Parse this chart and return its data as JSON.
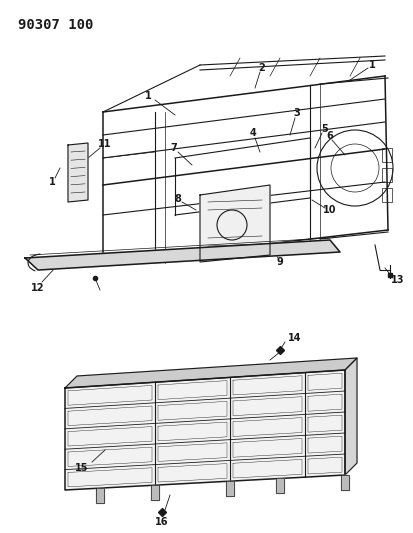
{
  "title_label": "90307 100",
  "bg": "#ffffff",
  "lc": "#1a1a1a",
  "fig_width": 4.13,
  "fig_height": 5.33,
  "dpi": 100
}
